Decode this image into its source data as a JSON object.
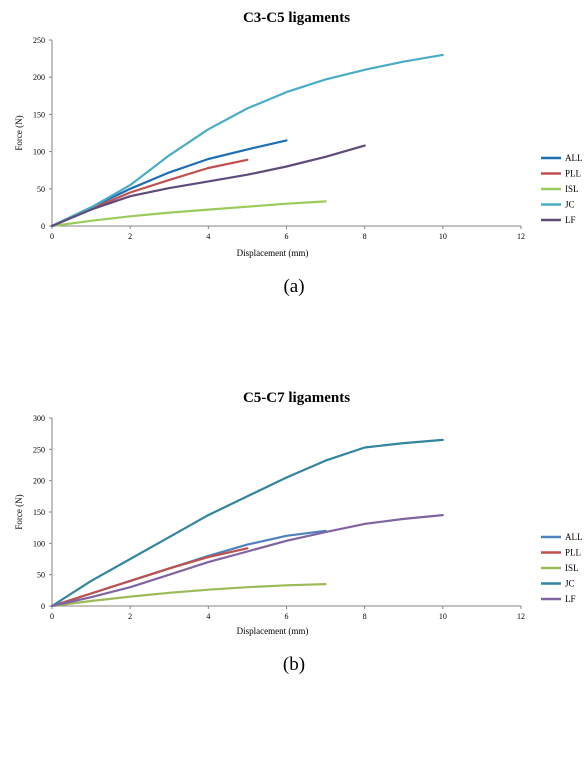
{
  "chart_data": [
    {
      "type": "line",
      "title": "C3-C5 ligaments",
      "xlabel": "Displacement  (mm)",
      "ylabel": "Force (N)",
      "xlim": [
        0,
        12
      ],
      "ylim": [
        0,
        250
      ],
      "xticks": [
        "0",
        "2",
        "4",
        "6",
        "8",
        "10",
        "12"
      ],
      "yticks": [
        "0",
        "50",
        "100",
        "150",
        "200",
        "250"
      ],
      "grid": false,
      "legend_position": "right",
      "caption": "(a)",
      "series": [
        {
          "name": "ALL",
          "color": "#1f6fb5",
          "points": [
            [
              0,
              0
            ],
            [
              1,
              25
            ],
            [
              2,
              50
            ],
            [
              3,
              72
            ],
            [
              4,
              90
            ],
            [
              5,
              103
            ],
            [
              6,
              115
            ]
          ]
        },
        {
          "name": "PLL",
          "color": "#c0504d",
          "points": [
            [
              0,
              0
            ],
            [
              1,
              23
            ],
            [
              2,
              45
            ],
            [
              3,
              62
            ],
            [
              4,
              78
            ],
            [
              5,
              89
            ]
          ]
        },
        {
          "name": "ISL",
          "color": "#9bcb5a",
          "points": [
            [
              0,
              0
            ],
            [
              1,
              7
            ],
            [
              2,
              13
            ],
            [
              3,
              18
            ],
            [
              4,
              22
            ],
            [
              5,
              26
            ],
            [
              6,
              30
            ],
            [
              7,
              33
            ]
          ]
        },
        {
          "name": "JC",
          "color": "#4bacc6",
          "points": [
            [
              0,
              0
            ],
            [
              1,
              25
            ],
            [
              2,
              55
            ],
            [
              3,
              95
            ],
            [
              4,
              130
            ],
            [
              5,
              158
            ],
            [
              6,
              180
            ],
            [
              7,
              197
            ],
            [
              8,
              210
            ],
            [
              9,
              221
            ],
            [
              10,
              230
            ]
          ]
        },
        {
          "name": "LF",
          "color": "#5f4b7a",
          "points": [
            [
              0,
              0
            ],
            [
              1,
              22
            ],
            [
              2,
              40
            ],
            [
              3,
              51
            ],
            [
              4,
              60
            ],
            [
              5,
              69
            ],
            [
              6,
              80
            ],
            [
              7,
              93
            ],
            [
              8,
              108
            ]
          ]
        }
      ]
    },
    {
      "type": "line",
      "title": "C5-C7 ligaments",
      "xlabel": "Displacement  (mm)",
      "ylabel": "Force (N)",
      "xlim": [
        0,
        12
      ],
      "ylim": [
        0,
        300
      ],
      "xticks": [
        "0",
        "2",
        "4",
        "6",
        "8",
        "10",
        "12"
      ],
      "yticks": [
        "0",
        "50",
        "100",
        "150",
        "200",
        "250",
        "300"
      ],
      "grid": false,
      "legend_position": "right",
      "caption": "(b)",
      "series": [
        {
          "name": "ALL",
          "color": "#4f81bd",
          "points": [
            [
              0,
              0
            ],
            [
              1,
              20
            ],
            [
              2,
              40
            ],
            [
              3,
              60
            ],
            [
              4,
              80
            ],
            [
              5,
              98
            ],
            [
              6,
              112
            ],
            [
              7,
              120
            ]
          ]
        },
        {
          "name": "PLL",
          "color": "#c0504d",
          "points": [
            [
              0,
              0
            ],
            [
              1,
              20
            ],
            [
              2,
              40
            ],
            [
              3,
              60
            ],
            [
              4,
              78
            ],
            [
              5,
              92
            ]
          ]
        },
        {
          "name": "ISL",
          "color": "#9bbb59",
          "points": [
            [
              0,
              0
            ],
            [
              1,
              8
            ],
            [
              2,
              15
            ],
            [
              3,
              21
            ],
            [
              4,
              26
            ],
            [
              5,
              30
            ],
            [
              6,
              33
            ],
            [
              7,
              35
            ]
          ]
        },
        {
          "name": "JC",
          "color": "#31859c",
          "points": [
            [
              0,
              0
            ],
            [
              1,
              40
            ],
            [
              2,
              75
            ],
            [
              3,
              110
            ],
            [
              4,
              145
            ],
            [
              5,
              175
            ],
            [
              6,
              205
            ],
            [
              7,
              232
            ],
            [
              8,
              253
            ],
            [
              9,
              260
            ],
            [
              10,
              265
            ]
          ]
        },
        {
          "name": "LF",
          "color": "#8064a2",
          "points": [
            [
              0,
              0
            ],
            [
              1,
              14
            ],
            [
              2,
              30
            ],
            [
              3,
              50
            ],
            [
              4,
              70
            ],
            [
              5,
              87
            ],
            [
              6,
              104
            ],
            [
              7,
              118
            ],
            [
              8,
              131
            ],
            [
              9,
              139
            ],
            [
              10,
              145
            ]
          ]
        }
      ]
    }
  ]
}
